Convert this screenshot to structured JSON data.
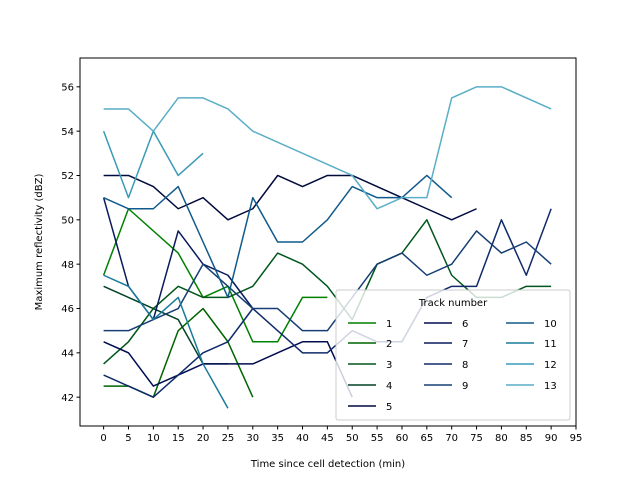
{
  "chart_data": {
    "type": "line",
    "title": "",
    "xlabel": "Time since cell detection (min)",
    "ylabel": "Maximum reflectivity (dBZ)",
    "xlim": [
      -4.75,
      95
    ],
    "ylim": [
      40.7,
      57.3
    ],
    "xticks": [
      0,
      5,
      10,
      15,
      20,
      25,
      30,
      35,
      40,
      45,
      50,
      55,
      60,
      65,
      70,
      75,
      80,
      85,
      90,
      95
    ],
    "yticks": [
      42,
      44,
      46,
      48,
      50,
      52,
      54,
      56
    ],
    "grid": false,
    "legend": {
      "title": "Track number",
      "placement": "lower-right",
      "columns": 3
    },
    "series": [
      {
        "name": "1",
        "color": "#008000",
        "x": [
          0,
          5,
          15,
          20,
          25,
          30,
          35,
          40,
          45
        ],
        "y": [
          47.5,
          50.5,
          48.5,
          46.5,
          47,
          44.5,
          44.5,
          46.5,
          46.5
        ]
      },
      {
        "name": "2",
        "color": "#006400",
        "x": [
          0,
          5,
          10,
          15,
          20,
          25,
          30
        ],
        "y": [
          42.5,
          42.5,
          42,
          45,
          46,
          44.5,
          42
        ]
      },
      {
        "name": "3",
        "color": "#00561c",
        "x": [
          0,
          5,
          10,
          15,
          20,
          25,
          30,
          35,
          40,
          45,
          50,
          55,
          60,
          65,
          70,
          75,
          80,
          85,
          90
        ],
        "y": [
          43.5,
          44.5,
          46,
          47,
          46.5,
          46.5,
          47,
          48.5,
          48,
          47,
          45.5,
          48,
          48.5,
          50,
          47.5,
          46.5,
          46.5,
          47,
          47
        ]
      },
      {
        "name": "4",
        "color": "#004225",
        "x": [
          0,
          5,
          10,
          15,
          20,
          25
        ],
        "y": [
          47,
          46.5,
          46,
          45.5,
          43.5,
          43.5
        ]
      },
      {
        "name": "5",
        "color": "#000a3c",
        "x": [
          0,
          5,
          10,
          15,
          20,
          25,
          30,
          35,
          40,
          45,
          50,
          55,
          60,
          65,
          70,
          75
        ],
        "y": [
          52,
          52,
          51.5,
          50.5,
          51,
          50,
          50.5,
          52,
          51.5,
          52,
          52,
          51.5,
          51,
          50.5,
          50,
          50.5
        ]
      },
      {
        "name": "6",
        "color": "#000c50",
        "x": [
          0,
          5,
          10,
          15,
          20,
          25,
          30,
          35,
          40,
          45,
          50
        ],
        "y": [
          44.5,
          44,
          42.5,
          43,
          43.5,
          43.5,
          43.5,
          44,
          44.5,
          44.5,
          42
        ]
      },
      {
        "name": "7",
        "color": "#0a1a5c",
        "x": [
          0,
          5,
          10,
          15,
          20,
          25,
          30
        ],
        "y": [
          51,
          47,
          45.5,
          49.5,
          48,
          47.5,
          46
        ]
      },
      {
        "name": "8",
        "color": "#102a6a",
        "x": [
          0,
          5,
          10,
          15,
          20,
          25,
          30,
          35,
          40,
          45,
          50,
          55,
          60,
          65,
          70,
          75,
          80,
          85,
          90
        ],
        "y": [
          43,
          42.5,
          42,
          43,
          44,
          44.5,
          46,
          45,
          44,
          44,
          45,
          44.5,
          44.5,
          46.5,
          47,
          47,
          50,
          47.5,
          50.5
        ]
      },
      {
        "name": "9",
        "color": "#163e74",
        "x": [
          0,
          5,
          10,
          15,
          20,
          25,
          30,
          35,
          40,
          45,
          50,
          55,
          60,
          65,
          70,
          75,
          80,
          85,
          90
        ],
        "y": [
          45,
          45,
          45.5,
          46,
          48,
          47,
          46,
          46,
          45,
          45,
          46.5,
          48,
          48.5,
          47.5,
          48,
          49.5,
          48.5,
          49,
          48
        ]
      },
      {
        "name": "10",
        "color": "#105a8c",
        "x": [
          0,
          5,
          10,
          15,
          20,
          25,
          30,
          35,
          40,
          45,
          50,
          55,
          60,
          65,
          70
        ],
        "y": [
          51,
          50.5,
          50.5,
          51.5,
          49,
          46.5,
          51,
          49,
          49,
          50,
          51.5,
          51,
          51,
          52,
          51
        ]
      },
      {
        "name": "11",
        "color": "#1a7c9c",
        "x": [
          0,
          5,
          10,
          15,
          20,
          25
        ],
        "y": [
          47.5,
          47,
          45.5,
          46.5,
          43.5,
          41.5
        ]
      },
      {
        "name": "12",
        "color": "#3a9ab6",
        "x": [
          0,
          5,
          10,
          15,
          20
        ],
        "y": [
          54,
          51,
          54,
          52,
          53
        ]
      },
      {
        "name": "13",
        "color": "#5aaec6",
        "x": [
          0,
          5,
          10,
          15,
          20,
          25,
          30,
          50,
          55,
          60,
          65,
          70,
          75,
          80,
          90
        ],
        "y": [
          55,
          55,
          54,
          55.5,
          55.5,
          55,
          54,
          52,
          50.5,
          51,
          51,
          55.5,
          56,
          56,
          55
        ]
      }
    ]
  }
}
